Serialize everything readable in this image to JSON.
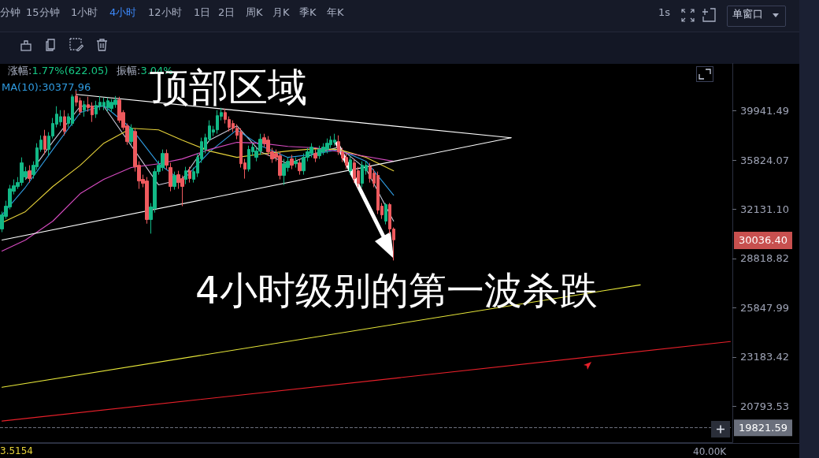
{
  "chart_data": {
    "type": "candlestick",
    "annotations": [
      "分钟",
      "15分钟",
      "1小时",
      "4小时",
      "12小时",
      "1日",
      "2日",
      "周K",
      "月K",
      "季K",
      "年K",
      "1s",
      "单窗口",
      "涨幅:1.77%(622.05)",
      "振幅:3.04%",
      "MA(10):30377.96",
      "顶部区域",
      "4小时级别的第一波杀跌",
      "3.5154",
      "40.00K",
      "30036.40"
    ],
    "categories": [
      null,
      null,
      null,
      null,
      null,
      null,
      null,
      null,
      null,
      null,
      null,
      null,
      null,
      null,
      null,
      null,
      null,
      null,
      null,
      null,
      null,
      null,
      null,
      null,
      null,
      null,
      null,
      null,
      null,
      null,
      null,
      null,
      null,
      null,
      null,
      null,
      null,
      null,
      null,
      null,
      null,
      null,
      null,
      null,
      null,
      null,
      null,
      null,
      null,
      null,
      null,
      null,
      null,
      null,
      null,
      null,
      null,
      null,
      null,
      null,
      null,
      null,
      null,
      null,
      null,
      null,
      null,
      null,
      null,
      null,
      null,
      null,
      null,
      null,
      null,
      null,
      null,
      null,
      null,
      null,
      null,
      null,
      null,
      null,
      null,
      null,
      null,
      null,
      null,
      null,
      null,
      null,
      null,
      null,
      null,
      null,
      null,
      null,
      null,
      null,
      null,
      null,
      null,
      null,
      null,
      null,
      null,
      null,
      null,
      null,
      null,
      null,
      null,
      null,
      null,
      null,
      null,
      null,
      null,
      null,
      null,
      null,
      null,
      null,
      null,
      null,
      null,
      null,
      null,
      null,
      null,
      null,
      null,
      null,
      null,
      null,
      null,
      null,
      null,
      null,
      null,
      null,
      null,
      null,
      null,
      null,
      null,
      null,
      null,
      null,
      null,
      null,
      null,
      null,
      null,
      null,
      null,
      null,
      null,
      null,
      null,
      null,
      null,
      null,
      null,
      null,
      null,
      null,
      null,
      null,
      null,
      null,
      null,
      null,
      null,
      null,
      null,
      null,
      null,
      null,
      null,
      null,
      null,
      null,
      null,
      null,
      null
    ],
    "ohlc": [
      [
        30765,
        31970,
        30550,
        31745
      ],
      [
        31634,
        32750,
        31460,
        32360
      ],
      [
        32300,
        33915,
        32130,
        33619
      ],
      [
        33440,
        34330,
        33210,
        33850
      ],
      [
        33790,
        34510,
        33615,
        34090
      ],
      [
        34090,
        36043,
        33860,
        35610
      ],
      [
        34510,
        35300,
        34330,
        34930
      ],
      [
        34990,
        35420,
        34090,
        34390
      ],
      [
        34690,
        35730,
        34390,
        35420
      ],
      [
        35300,
        37190,
        35060,
        36810
      ],
      [
        36678,
        37840,
        36490,
        37450
      ],
      [
        37780,
        38307,
        36300,
        36678
      ],
      [
        36678,
        38110,
        36170,
        37780
      ],
      [
        37780,
        39322,
        37580,
        38850
      ],
      [
        38780,
        40360,
        38510,
        39664
      ],
      [
        38980,
        40011,
        38643,
        39440
      ],
      [
        39440,
        40011,
        37840,
        38170
      ],
      [
        38850,
        39730,
        38510,
        39440
      ],
      [
        38850,
        41428,
        38643,
        41210
      ],
      [
        41280,
        41791,
        40360,
        40713
      ],
      [
        40850,
        41140,
        39600,
        39870
      ],
      [
        40011,
        40850,
        39440,
        40500
      ],
      [
        40500,
        41210,
        39870,
        40220
      ],
      [
        40360,
        40713,
        38980,
        39600
      ],
      [
        39664,
        40850,
        39322,
        40430
      ],
      [
        40360,
        41280,
        40011,
        40713
      ],
      [
        40360,
        41140,
        40011,
        40713
      ],
      [
        40220,
        41140,
        39870,
        40850
      ],
      [
        40150,
        41000,
        39870,
        40713
      ],
      [
        40500,
        41280,
        40220,
        40920
      ],
      [
        40920,
        41210,
        38910,
        39120
      ],
      [
        39800,
        40011,
        38307,
        38510
      ],
      [
        38643,
        38850,
        37060,
        37321
      ],
      [
        37321,
        38780,
        37060,
        38440
      ],
      [
        38170,
        38440,
        34930,
        35300
      ],
      [
        35420,
        35730,
        33619,
        34209
      ],
      [
        34330,
        34690,
        33740,
        34030
      ],
      [
        34209,
        34510,
        31130,
        31415
      ],
      [
        31415,
        32580,
        30450,
        32300
      ],
      [
        32189,
        35180,
        31900,
        34930
      ],
      [
        34930,
        35790,
        34690,
        35420
      ],
      [
        35240,
        36678,
        34990,
        36358
      ],
      [
        36358,
        36678,
        35116,
        35420
      ],
      [
        35240,
        35610,
        33440,
        33800
      ],
      [
        33800,
        34930,
        33560,
        34630
      ],
      [
        34690,
        34990,
        33620,
        34090
      ],
      [
        34390,
        34630,
        32360,
        33800
      ],
      [
        34330,
        35300,
        33970,
        34990
      ],
      [
        34990,
        35300,
        34090,
        34390
      ],
      [
        34330,
        35240,
        34090,
        34930
      ],
      [
        34809,
        36358,
        34510,
        36043
      ],
      [
        35920,
        37650,
        35610,
        37321
      ],
      [
        36678,
        37980,
        36360,
        37646
      ],
      [
        37520,
        39120,
        37321,
        38643
      ],
      [
        38110,
        38643,
        37780,
        38307
      ],
      [
        38307,
        40011,
        37980,
        39530
      ],
      [
        39460,
        40220,
        39120,
        39800
      ],
      [
        39800,
        40150,
        38850,
        39190
      ],
      [
        39190,
        39460,
        38170,
        38510
      ],
      [
        38850,
        39120,
        38110,
        38440
      ],
      [
        38440,
        38780,
        37520,
        37840
      ],
      [
        38110,
        38440,
        35240,
        35540
      ],
      [
        35610,
        35920,
        34390,
        35116
      ],
      [
        35116,
        36990,
        34930,
        36678
      ],
      [
        36490,
        37190,
        36170,
        36870
      ],
      [
        36043,
        36870,
        35730,
        36550
      ],
      [
        36550,
        37976,
        36240,
        37520
      ],
      [
        37646,
        37976,
        36870,
        37190
      ],
      [
        37450,
        37780,
        36170,
        36490
      ],
      [
        36490,
        36810,
        35610,
        35920
      ],
      [
        36358,
        36678,
        35730,
        36043
      ],
      [
        36170,
        36490,
        34330,
        34630
      ],
      [
        34630,
        35920,
        33910,
        35540
      ],
      [
        35240,
        36043,
        34930,
        35730
      ],
      [
        35920,
        36240,
        35116,
        35420
      ],
      [
        35540,
        36043,
        35240,
        35730
      ],
      [
        35610,
        35920,
        34690,
        34990
      ],
      [
        34990,
        36358,
        34690,
        36043
      ],
      [
        36043,
        36810,
        35730,
        36490
      ],
      [
        36358,
        37190,
        36043,
        36870
      ],
      [
        36358,
        36678,
        35670,
        35980
      ],
      [
        36170,
        36990,
        35920,
        36678
      ],
      [
        36490,
        37190,
        36240,
        36870
      ],
      [
        36678,
        37580,
        36360,
        37190
      ],
      [
        37060,
        37780,
        36810,
        37450
      ],
      [
        37260,
        37976,
        36990,
        37450
      ],
      [
        37321,
        37840,
        36240,
        36490
      ],
      [
        36490,
        36810,
        35670,
        35980
      ],
      [
        36043,
        36358,
        35116,
        35420
      ],
      [
        34990,
        36170,
        34690,
        35850
      ],
      [
        35610,
        35920,
        34090,
        34390
      ],
      [
        34990,
        35300,
        33740,
        34030
      ],
      [
        34030,
        35730,
        33740,
        35420
      ],
      [
        34990,
        35730,
        34690,
        35420
      ],
      [
        35300,
        35610,
        34090,
        34390
      ],
      [
        34809,
        35116,
        33740,
        34030
      ],
      [
        34630,
        34930,
        31800,
        32070
      ],
      [
        32360,
        32580,
        31460,
        31740
      ],
      [
        31305,
        32580,
        31080,
        32472
      ],
      [
        32472,
        32580,
        30450,
        30765
      ],
      [
        30765,
        30870,
        28697,
        30036.4
      ],
      null,
      null,
      null,
      null,
      null,
      null,
      null,
      null,
      null,
      null,
      null,
      null,
      null,
      null,
      null,
      null,
      null,
      null,
      null,
      null,
      null,
      null,
      null,
      null,
      null,
      null,
      null,
      null,
      null,
      null,
      null,
      null,
      null,
      null,
      null,
      null,
      null,
      null,
      null,
      null,
      null,
      null,
      null,
      null,
      null,
      null,
      null,
      null,
      null,
      null,
      null,
      null,
      null,
      null,
      null,
      null,
      null,
      null,
      null,
      null,
      null,
      null,
      null,
      null,
      null,
      null,
      null,
      null,
      null,
      null,
      null,
      null,
      null,
      null,
      null,
      null,
      null,
      null,
      null,
      null,
      null,
      null,
      null,
      null,
      null,
      null
    ],
    "series": [
      {
        "type": "line",
        "color": "#c8c8d8",
        "values": [
          null,
          null,
          null,
          null,
          null,
          null,
          34330,
          null,
          null,
          null,
          null,
          null,
          null,
          37321,
          null,
          null,
          null,
          null,
          null,
          null,
          40361,
          null,
          null,
          null,
          null,
          null,
          40361,
          null,
          null,
          null,
          null,
          null,
          null,
          null,
          null,
          null,
          null,
          null,
          null,
          null,
          33915,
          null,
          null,
          null,
          null,
          null,
          34330,
          null,
          null,
          null,
          null,
          null,
          null,
          37450,
          null,
          null,
          null,
          null,
          null,
          null,
          38643,
          null,
          null,
          null,
          null,
          null,
          36490,
          null,
          null,
          null,
          null,
          null,
          null,
          35540,
          null,
          null,
          null,
          null,
          null,
          null,
          36358,
          null,
          null,
          null,
          null,
          null,
          36870,
          null,
          null,
          null,
          null,
          null,
          null,
          35116,
          null,
          null,
          null,
          null,
          null,
          null,
          31305,
          null,
          null,
          null,
          null,
          null,
          null,
          null,
          null,
          null,
          null,
          null,
          null,
          null,
          null,
          null,
          null,
          null,
          null,
          null,
          null,
          null,
          null,
          null,
          null,
          null,
          null,
          null,
          null,
          null,
          null,
          null,
          null,
          null,
          null,
          null,
          null,
          null,
          null,
          null,
          null,
          null,
          null,
          null,
          null,
          null,
          null,
          null,
          null,
          null,
          null,
          null,
          null,
          null,
          null,
          null,
          null,
          null,
          null,
          null,
          null,
          null,
          null,
          null,
          null,
          null,
          null,
          null,
          null,
          null,
          null,
          null,
          null,
          null,
          null,
          null,
          null,
          null,
          null,
          null,
          null,
          null,
          null,
          null,
          null,
          null,
          null
        ]
      },
      {
        "type": "line",
        "color": "#2f9be0",
        "values": [
          31740,
          null,
          null,
          null,
          null,
          null,
          33740,
          null,
          null,
          null,
          null,
          null,
          null,
          36678,
          null,
          null,
          null,
          null,
          null,
          null,
          39800,
          null,
          null,
          null,
          null,
          null,
          40430,
          null,
          null,
          null,
          null,
          null,
          null,
          38440,
          null,
          null,
          null,
          null,
          null,
          null,
          35540,
          null,
          null,
          null,
          null,
          null,
          34209,
          null,
          null,
          null,
          null,
          null,
          null,
          36490,
          null,
          null,
          null,
          null,
          null,
          null,
          38307,
          null,
          null,
          null,
          null,
          null,
          36997,
          null,
          null,
          null,
          null,
          null,
          null,
          36043,
          null,
          null,
          null,
          null,
          null,
          null,
          36300,
          null,
          null,
          null,
          null,
          null,
          36678,
          null,
          null,
          null,
          null,
          null,
          null,
          35731,
          null,
          null,
          null,
          null,
          null,
          null,
          33150,
          null,
          null,
          null,
          null,
          null,
          null,
          null,
          null,
          null,
          null,
          null,
          null,
          null,
          null,
          null,
          null,
          null,
          null,
          null,
          null,
          null,
          null,
          null,
          null,
          null,
          null,
          null,
          null,
          null,
          null,
          null,
          null,
          null,
          null,
          null,
          null,
          null,
          null,
          null,
          null,
          null,
          null,
          null,
          null,
          null,
          null,
          null,
          null,
          null,
          null,
          null,
          null,
          null,
          null,
          null,
          null,
          null,
          null,
          null,
          null,
          null,
          null,
          null,
          null,
          null,
          null,
          null,
          null,
          null,
          null,
          null,
          null,
          null,
          null,
          null,
          null,
          null,
          null,
          null,
          null,
          null,
          null,
          null,
          null,
          null,
          null
        ]
      },
      {
        "type": "line",
        "color": "#e6d23a",
        "values": [
          31200,
          null,
          null,
          null,
          null,
          null,
          31970,
          null,
          null,
          null,
          null,
          null,
          null,
          33800,
          null,
          null,
          null,
          null,
          null,
          null,
          35420,
          null,
          null,
          null,
          null,
          null,
          37190,
          null,
          null,
          null,
          null,
          null,
          null,
          38440,
          null,
          null,
          null,
          null,
          null,
          null,
          38307,
          null,
          null,
          null,
          null,
          null,
          37450,
          null,
          null,
          null,
          null,
          null,
          null,
          36550,
          null,
          null,
          null,
          null,
          null,
          null,
          36043,
          null,
          null,
          null,
          null,
          null,
          36300,
          null,
          null,
          null,
          null,
          null,
          null,
          36550,
          null,
          null,
          null,
          null,
          null,
          null,
          36740,
          null,
          null,
          null,
          null,
          null,
          36678,
          null,
          null,
          null,
          null,
          null,
          null,
          36043,
          null,
          null,
          null,
          null,
          null,
          null,
          34990,
          null,
          null,
          null,
          null,
          null,
          null,
          null,
          null,
          null,
          null,
          null,
          null,
          null,
          null,
          null,
          null,
          null,
          null,
          null,
          null,
          null,
          null,
          null,
          null,
          null,
          null,
          null,
          null,
          null,
          null,
          null,
          null,
          null,
          null,
          null,
          null,
          null,
          null,
          null,
          null,
          null,
          null,
          null,
          null,
          null,
          null,
          null,
          null,
          null,
          null,
          null,
          null,
          null,
          null,
          null,
          null,
          null,
          null,
          null,
          null,
          null,
          null,
          null,
          null,
          null,
          null,
          null,
          null,
          null,
          null,
          null,
          null,
          null,
          null,
          null,
          null,
          null,
          null,
          null,
          null,
          null,
          null,
          null,
          null,
          null,
          null
        ]
      },
      {
        "type": "line",
        "color": "#d64bc0",
        "values": [
          29300,
          null,
          null,
          null,
          null,
          null,
          30024,
          null,
          null,
          null,
          null,
          null,
          null,
          31305,
          null,
          null,
          null,
          null,
          null,
          null,
          33270,
          null,
          null,
          null,
          null,
          null,
          34330,
          null,
          null,
          null,
          null,
          null,
          null,
          35240,
          null,
          null,
          null,
          null,
          null,
          null,
          35540,
          null,
          null,
          null,
          null,
          null,
          35920,
          null,
          null,
          null,
          null,
          null,
          null,
          36678,
          null,
          null,
          null,
          null,
          null,
          null,
          37260,
          null,
          null,
          null,
          null,
          null,
          37190,
          null,
          null,
          null,
          null,
          null,
          null,
          36930,
          null,
          null,
          null,
          null,
          null,
          null,
          36810,
          null,
          null,
          null,
          null,
          null,
          36490,
          null,
          null,
          null,
          null,
          null,
          null,
          36110,
          null,
          null,
          null,
          null,
          null,
          null,
          35731,
          null,
          null,
          null,
          null,
          null,
          null,
          null,
          null,
          null,
          null,
          null,
          null,
          null,
          null,
          null,
          null,
          null,
          null,
          null,
          null,
          null,
          null,
          null,
          null,
          null,
          null,
          null,
          null,
          null,
          null,
          null,
          null,
          null,
          null,
          null,
          null,
          null,
          null,
          null,
          null,
          null,
          null,
          null,
          null,
          null,
          null,
          null,
          null,
          null,
          null,
          null,
          null,
          null,
          null,
          null,
          null,
          null,
          null,
          null,
          null,
          null,
          null,
          null,
          null,
          null,
          null,
          null,
          null,
          null,
          null,
          null,
          null,
          null,
          null,
          null,
          null,
          null,
          null,
          null,
          null,
          null,
          null,
          null,
          null,
          null,
          null
        ]
      },
      {
        "type": "line",
        "color": "#ffffff",
        "values": [
          null,
          null,
          null,
          null,
          null,
          null,
          null,
          null,
          null,
          null,
          null,
          null,
          null,
          null,
          null,
          null,
          null,
          null,
          null,
          41428,
          null,
          null,
          null,
          null,
          null,
          null,
          null,
          null,
          null,
          null,
          null,
          null,
          null,
          null,
          null,
          null,
          null,
          null,
          null,
          null,
          null,
          null,
          null,
          null,
          null,
          null,
          null,
          null,
          null,
          null,
          null,
          null,
          null,
          null,
          null,
          null,
          null,
          null,
          null,
          null,
          null,
          null,
          null,
          null,
          null,
          null,
          null,
          null,
          null,
          null,
          null,
          null,
          null,
          null,
          null,
          null,
          null,
          null,
          null,
          null,
          null,
          null,
          null,
          null,
          null,
          null,
          null,
          null,
          null,
          null,
          null,
          null,
          null,
          null,
          null,
          null,
          null,
          null,
          null,
          null,
          null,
          null,
          null,
          null,
          null,
          null,
          null,
          null,
          null,
          null,
          null,
          null,
          null,
          null,
          null,
          null,
          null,
          null,
          null,
          null,
          null,
          null,
          null,
          null,
          null,
          null,
          null,
          null,
          null,
          null,
          37646,
          null,
          null,
          null,
          null,
          null,
          null,
          null,
          null,
          null,
          null,
          null,
          null,
          null,
          null,
          null,
          null,
          null,
          null,
          null,
          null,
          null,
          null,
          null,
          null,
          null,
          null,
          null,
          null,
          null,
          null,
          null,
          null,
          null,
          null,
          null,
          null,
          null,
          null,
          null,
          null,
          null,
          null,
          null,
          null,
          null,
          null,
          null,
          null,
          null,
          null,
          null,
          null,
          null,
          null,
          null,
          null
        ]
      },
      {
        "type": "line",
        "color": "#ffffff",
        "values": [
          30024,
          null,
          null,
          null,
          null,
          null,
          null,
          null,
          null,
          null,
          null,
          null,
          null,
          null,
          null,
          null,
          null,
          null,
          null,
          null,
          null,
          null,
          null,
          null,
          null,
          null,
          null,
          null,
          null,
          null,
          null,
          null,
          null,
          null,
          null,
          null,
          null,
          null,
          null,
          null,
          null,
          null,
          null,
          null,
          null,
          null,
          null,
          null,
          null,
          null,
          null,
          null,
          null,
          null,
          null,
          null,
          null,
          null,
          null,
          null,
          null,
          null,
          null,
          null,
          null,
          null,
          null,
          null,
          null,
          null,
          null,
          null,
          null,
          null,
          null,
          null,
          null,
          null,
          null,
          null,
          null,
          null,
          null,
          null,
          null,
          null,
          null,
          null,
          null,
          null,
          null,
          null,
          null,
          null,
          null,
          null,
          null,
          null,
          null,
          null,
          null,
          null,
          null,
          null,
          null,
          null,
          null,
          null,
          null,
          null,
          null,
          null,
          null,
          null,
          null,
          null,
          null,
          null,
          null,
          null,
          null,
          null,
          null,
          null,
          null,
          null,
          null,
          null,
          null,
          null,
          37646,
          null,
          null,
          null,
          null,
          null,
          null,
          null,
          null,
          null,
          null,
          null,
          null,
          null,
          null,
          null,
          null,
          null,
          null,
          null,
          null,
          null,
          null,
          null,
          null,
          null,
          null,
          null,
          null,
          null,
          null,
          null,
          null,
          null,
          null,
          null,
          null,
          null,
          null,
          null,
          null,
          null,
          null,
          null,
          null,
          null,
          null,
          null,
          null,
          null,
          null,
          null,
          null,
          null,
          null,
          null,
          null
        ]
      },
      {
        "type": "line",
        "color": "#e8e83a",
        "values": [
          21680,
          null,
          null,
          null,
          null,
          null,
          null,
          null,
          null,
          null,
          null,
          null,
          null,
          null,
          null,
          null,
          null,
          null,
          null,
          null,
          null,
          null,
          null,
          null,
          null,
          null,
          null,
          null,
          null,
          null,
          null,
          null,
          null,
          null,
          null,
          null,
          null,
          null,
          null,
          null,
          null,
          null,
          null,
          null,
          null,
          null,
          null,
          null,
          null,
          null,
          null,
          null,
          null,
          null,
          null,
          null,
          null,
          null,
          null,
          null,
          null,
          null,
          null,
          null,
          null,
          null,
          null,
          null,
          null,
          null,
          null,
          null,
          null,
          null,
          null,
          null,
          null,
          null,
          null,
          null,
          null,
          null,
          null,
          null,
          null,
          null,
          null,
          null,
          null,
          null,
          null,
          null,
          null,
          null,
          null,
          null,
          null,
          null,
          null,
          null,
          null,
          null,
          null,
          null,
          null,
          null,
          null,
          null,
          null,
          null,
          null,
          null,
          null,
          null,
          null,
          null,
          null,
          null,
          null,
          null,
          null,
          null,
          null,
          null,
          null,
          null,
          null,
          null,
          null,
          null,
          null,
          null,
          null,
          null,
          null,
          null,
          null,
          null,
          null,
          null,
          null,
          null,
          null,
          null,
          null,
          null,
          null,
          null,
          null,
          null,
          null,
          null,
          null,
          null,
          null,
          null,
          null,
          null,
          null,
          null,
          null,
          null,
          null,
          27190,
          null,
          null,
          null,
          null,
          null,
          null,
          null,
          null,
          null,
          null,
          null,
          null,
          null,
          null,
          null,
          null,
          null,
          null,
          null,
          null,
          null,
          null,
          null
        ]
      },
      {
        "type": "line",
        "color": "#e8202a",
        "values": [
          20120,
          null,
          null,
          null,
          null,
          null,
          null,
          null,
          null,
          null,
          null,
          null,
          null,
          null,
          null,
          null,
          null,
          null,
          null,
          null,
          null,
          null,
          null,
          null,
          null,
          null,
          null,
          null,
          null,
          null,
          null,
          null,
          null,
          null,
          null,
          null,
          null,
          null,
          null,
          null,
          null,
          null,
          null,
          null,
          null,
          null,
          null,
          null,
          null,
          null,
          null,
          null,
          null,
          null,
          null,
          null,
          null,
          null,
          null,
          null,
          null,
          null,
          null,
          null,
          null,
          null,
          null,
          null,
          null,
          null,
          null,
          null,
          null,
          null,
          null,
          null,
          null,
          null,
          null,
          null,
          null,
          null,
          null,
          null,
          null,
          null,
          null,
          null,
          null,
          null,
          null,
          null,
          null,
          null,
          null,
          null,
          null,
          null,
          null,
          null,
          null,
          null,
          null,
          null,
          null,
          null,
          null,
          null,
          null,
          null,
          null,
          null,
          null,
          null,
          null,
          null,
          null,
          null,
          null,
          null,
          null,
          null,
          null,
          null,
          null,
          null,
          null,
          null,
          null,
          null,
          null,
          null,
          null,
          null,
          null,
          null,
          null,
          null,
          null,
          null,
          null,
          null,
          null,
          null,
          null,
          null,
          null,
          null,
          null,
          null,
          null,
          null,
          null,
          null,
          null,
          null,
          null,
          null,
          null,
          null,
          null,
          null,
          null,
          null,
          null,
          null,
          null,
          null,
          null,
          null,
          null,
          null,
          null,
          null,
          null,
          null,
          null,
          null,
          null,
          null,
          null,
          null,
          null,
          null,
          null,
          null,
          23985
        ]
      }
    ],
    "ylim": [
      19200,
      44400
    ],
    "yticks": [
      39941.49,
      35824.07,
      {
        "value": 32131.1,
        "label": "32131.10"
      },
      28818.82,
      25847.99,
      23183.42,
      20793.53
    ],
    "log": true,
    "grid": false,
    "tick_labels": "y",
    "ref_lines": [
      {
        "axis": "y",
        "value": 19821.59,
        "label": "19821.59",
        "color": "#6a6f7c",
        "line_style": "dashed"
      }
    ]
  }
}
